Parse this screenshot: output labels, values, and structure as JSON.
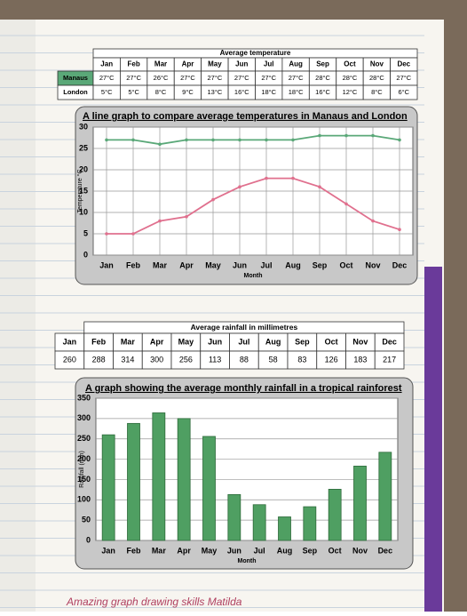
{
  "temperature_table": {
    "title": "Average temperature",
    "header": [
      "Jan",
      "Feb",
      "Mar",
      "Apr",
      "May",
      "Jun",
      "Jul",
      "Aug",
      "Sep",
      "Oct",
      "Nov",
      "Dec"
    ],
    "rows": [
      [
        "Manaus",
        "27°C",
        "27°C",
        "26°C",
        "27°C",
        "27°C",
        "27°C",
        "27°C",
        "27°C",
        "28°C",
        "28°C",
        "28°C",
        "27°C"
      ],
      [
        "London",
        "5°C",
        "5°C",
        "8°C",
        "9°C",
        "13°C",
        "16°C",
        "18°C",
        "18°C",
        "16°C",
        "12°C",
        "8°C",
        "6°C"
      ]
    ]
  },
  "rainfall_table": {
    "title": "Average rainfall in millimetres",
    "header": [
      "Jan",
      "Feb",
      "Mar",
      "Apr",
      "May",
      "Jun",
      "Jul",
      "Aug",
      "Sep",
      "Oct",
      "Nov",
      "Dec"
    ],
    "values": [
      "260",
      "288",
      "314",
      "300",
      "256",
      "113",
      "88",
      "58",
      "83",
      "126",
      "183",
      "217"
    ]
  },
  "chart_data": [
    {
      "type": "line",
      "title": "A line graph to compare average temperatures in Manaus and London",
      "y_label": "Temperature °C",
      "x_label": "Month",
      "categories": [
        "Jan",
        "Feb",
        "Mar",
        "Apr",
        "May",
        "Jun",
        "Jul",
        "Aug",
        "Sep",
        "Oct",
        "Nov",
        "Dec"
      ],
      "series": [
        {
          "name": "Manaus",
          "color": "#5aa878",
          "values": [
            27,
            27,
            26,
            27,
            27,
            27,
            27,
            27,
            28,
            28,
            28,
            27
          ]
        },
        {
          "name": "London",
          "color": "#e0708e",
          "values": [
            5,
            5,
            8,
            9,
            13,
            16,
            18,
            18,
            16,
            12,
            8,
            6
          ]
        }
      ],
      "ylim": [
        0,
        30
      ],
      "yticks": [
        0,
        5,
        10,
        15,
        20,
        25,
        30
      ],
      "grid": true
    },
    {
      "type": "bar",
      "title": "A graph showing the average monthly rainfall in a tropical rainforest",
      "y_label": "Rainfall (mm)",
      "x_label": "Month",
      "categories": [
        "Jan",
        "Feb",
        "Mar",
        "Apr",
        "May",
        "Jun",
        "Jul",
        "Aug",
        "Sep",
        "Oct",
        "Nov",
        "Dec"
      ],
      "values": [
        260,
        288,
        314,
        300,
        256,
        113,
        88,
        58,
        83,
        126,
        183,
        217
      ],
      "color": "#4f9f62",
      "ylim": [
        0,
        350
      ],
      "yticks": [
        0,
        50,
        100,
        150,
        200,
        250,
        300,
        350
      ],
      "grid": true
    }
  ],
  "note": "Amazing graph drawing skills Matilda"
}
